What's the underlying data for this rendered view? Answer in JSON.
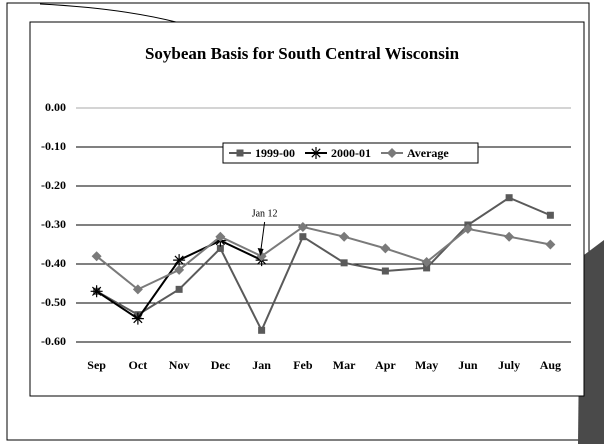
{
  "chart_data": {
    "type": "line",
    "title": "Soybean Basis for South Central Wisconsin",
    "categories": [
      "Sep",
      "Oct",
      "Nov",
      "Dec",
      "Jan",
      "Feb",
      "Mar",
      "Apr",
      "May",
      "Jun",
      "July",
      "Aug"
    ],
    "series": [
      {
        "name": "1999-00",
        "color": "#5a5a5a",
        "marker": "square",
        "values": [
          -0.47,
          -0.53,
          -0.465,
          -0.36,
          -0.57,
          -0.33,
          -0.397,
          -0.418,
          -0.41,
          -0.3,
          -0.23,
          -0.275
        ]
      },
      {
        "name": "2000-01",
        "color": "#000000",
        "marker": "asterisk",
        "values": [
          -0.47,
          -0.54,
          -0.39,
          -0.34,
          -0.39,
          null,
          null,
          null,
          null,
          null,
          null,
          null
        ]
      },
      {
        "name": "Average",
        "color": "#7a7a7a",
        "marker": "diamond",
        "values": [
          -0.38,
          -0.465,
          -0.415,
          -0.33,
          -0.38,
          -0.305,
          -0.33,
          -0.36,
          -0.395,
          -0.31,
          -0.33,
          -0.35
        ]
      }
    ],
    "ylim": [
      -0.6,
      0
    ],
    "yticks": [
      {
        "value": 0,
        "label": "0.00"
      },
      {
        "value": -0.1,
        "label": "-0.10"
      },
      {
        "value": -0.2,
        "label": "-0.20"
      },
      {
        "value": -0.3,
        "label": "-0.30"
      },
      {
        "value": -0.4,
        "label": "-0.40"
      },
      {
        "value": -0.5,
        "label": "-0.50"
      },
      {
        "value": -0.6,
        "label": "-0.60"
      }
    ],
    "grid": true,
    "legend": "upper center",
    "annotations": [
      {
        "text": "Jan 12"
      }
    ]
  }
}
